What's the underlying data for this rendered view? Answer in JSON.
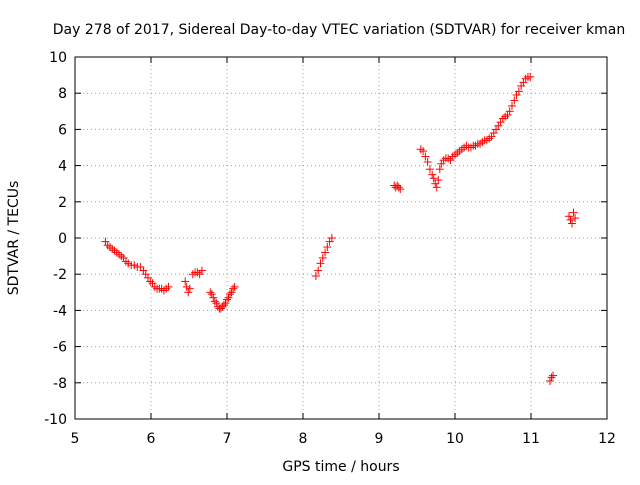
{
  "chart_data": {
    "type": "scatter",
    "title": "Day 278 of 2017, Sidereal Day-to-day VTEC variation (SDTVAR) for receiver kman",
    "xlabel": "GPS time / hours",
    "ylabel": "SDTVAR / TECUs",
    "xlim": [
      5,
      12
    ],
    "ylim": [
      -10,
      10
    ],
    "xticks": [
      "5",
      "6",
      "7",
      "8",
      "9",
      "10",
      "11",
      "12"
    ],
    "yticks": [
      "-10",
      "-8",
      "-6",
      "-4",
      "-2",
      "0",
      "2",
      "4",
      "6",
      "8",
      "10"
    ],
    "grid": true,
    "grid_style": "dotted",
    "marker": "plus",
    "series": [
      {
        "color": "#ff0000",
        "x": [
          5.4,
          5.43,
          5.46,
          5.49,
          5.52,
          5.55,
          5.58,
          5.61,
          5.64,
          5.67,
          5.7,
          5.74,
          5.78,
          5.82,
          5.86,
          5.9,
          5.93,
          5.96,
          5.99,
          6.02,
          6.05,
          6.08,
          6.11,
          6.14,
          6.17,
          6.2,
          6.23,
          6.45,
          6.47,
          6.49,
          6.51,
          6.55,
          6.58,
          6.61,
          6.64,
          6.67,
          6.78,
          6.8,
          6.82,
          6.84,
          6.86,
          6.88,
          6.9,
          6.92,
          6.94,
          6.96,
          6.98,
          7.0,
          7.02,
          7.04,
          7.06,
          7.08,
          7.1,
          8.17,
          8.2,
          8.23,
          8.26,
          8.29,
          8.32,
          8.35,
          8.38,
          9.2,
          9.22,
          9.24,
          9.26,
          9.28,
          9.55,
          9.58,
          9.61,
          9.64,
          9.67,
          9.7,
          9.72,
          9.74,
          9.76,
          9.78,
          9.8,
          9.82,
          9.85,
          9.88,
          9.91,
          9.94,
          9.97,
          10.0,
          10.03,
          10.06,
          10.09,
          10.12,
          10.15,
          10.18,
          10.21,
          10.24,
          10.27,
          10.3,
          10.33,
          10.36,
          10.39,
          10.42,
          10.45,
          10.48,
          10.51,
          10.54,
          10.57,
          10.6,
          10.63,
          10.66,
          10.69,
          10.72,
          10.75,
          10.78,
          10.81,
          10.84,
          10.87,
          10.9,
          10.93,
          10.96,
          10.99,
          11.25,
          11.27,
          11.29,
          11.5,
          11.52,
          11.54,
          11.56,
          11.58
        ],
        "y": [
          -0.2,
          -0.4,
          -0.5,
          -0.6,
          -0.7,
          -0.8,
          -0.9,
          -1.0,
          -1.1,
          -1.3,
          -1.4,
          -1.5,
          -1.5,
          -1.6,
          -1.6,
          -1.8,
          -2.0,
          -2.2,
          -2.4,
          -2.5,
          -2.7,
          -2.8,
          -2.8,
          -2.8,
          -2.9,
          -2.8,
          -2.7,
          -2.4,
          -2.7,
          -3.0,
          -2.8,
          -2.0,
          -1.9,
          -1.9,
          -2.0,
          -1.8,
          -3.0,
          -3.1,
          -3.3,
          -3.5,
          -3.6,
          -3.8,
          -3.9,
          -3.9,
          -3.8,
          -3.7,
          -3.6,
          -3.4,
          -3.3,
          -3.1,
          -3.0,
          -2.8,
          -2.7,
          -2.1,
          -1.8,
          -1.4,
          -1.1,
          -0.8,
          -0.5,
          -0.2,
          0.0,
          2.9,
          2.8,
          2.9,
          2.8,
          2.7,
          4.9,
          4.8,
          4.5,
          4.2,
          3.8,
          3.5,
          3.3,
          3.0,
          2.8,
          3.2,
          3.8,
          4.1,
          4.3,
          4.4,
          4.4,
          4.3,
          4.5,
          4.6,
          4.7,
          4.8,
          4.9,
          5.0,
          5.1,
          5.0,
          5.0,
          5.1,
          5.1,
          5.2,
          5.2,
          5.3,
          5.4,
          5.4,
          5.5,
          5.6,
          5.8,
          6.0,
          6.2,
          6.4,
          6.6,
          6.7,
          6.8,
          7.0,
          7.3,
          7.6,
          7.9,
          8.1,
          8.4,
          8.6,
          8.8,
          8.9,
          8.9,
          -7.9,
          -7.7,
          -7.6,
          1.2,
          1.0,
          0.8,
          1.4,
          1.1
        ]
      }
    ]
  }
}
